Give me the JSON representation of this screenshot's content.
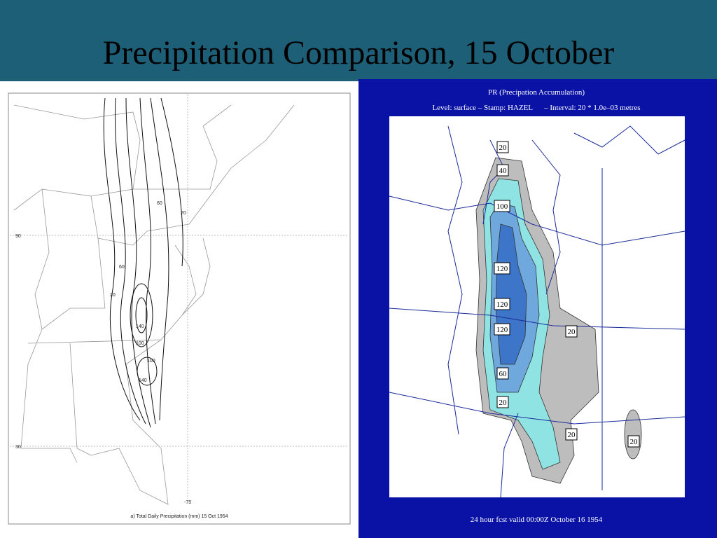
{
  "title": "Precipitation Comparison, 15 October",
  "left_map": {
    "caption": "a) Total Daily Precipitation (mm) 15 Oct 1954",
    "axis_labels": [
      "90",
      "30",
      "-75"
    ],
    "contour_labels": [
      "60",
      "20",
      "60",
      "20",
      "140",
      "100",
      "100",
      "140"
    ]
  },
  "right_map": {
    "title": "PR (Precipation Accumulation)",
    "subtitle": "Level: surface – Stamp: HAZEL      – Interval: 20 * 1.0e–03 metres",
    "contour_labels": [
      "20",
      "40",
      "100",
      "120",
      "120",
      "120",
      "60",
      "20",
      "20",
      "20",
      "20"
    ],
    "footer": "24 hour fcst valid 00:00Z October 16 1954"
  }
}
